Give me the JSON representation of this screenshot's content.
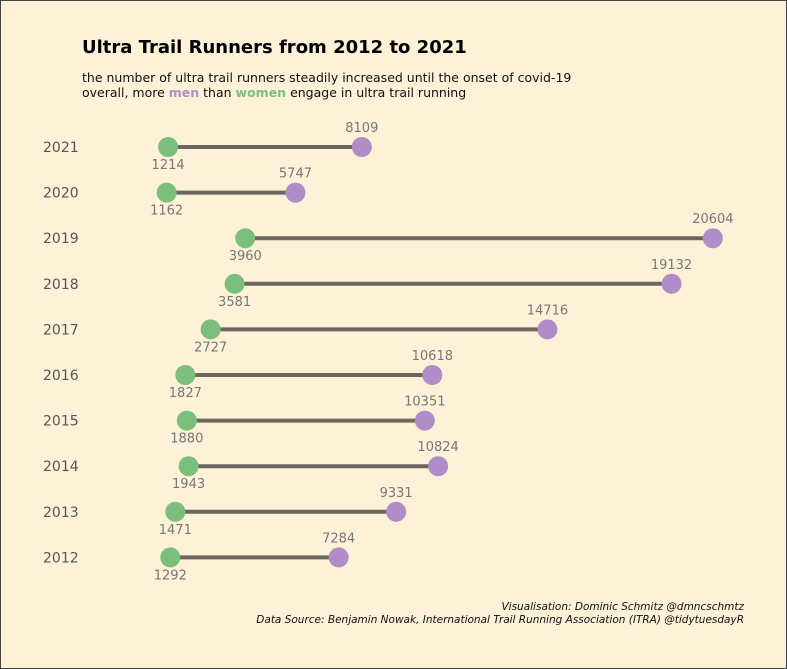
{
  "chart_data": {
    "type": "dumbbell",
    "title": "Ultra Trail Runners from 2012 to 2021",
    "subtitle_line1": "the number of ultra trail runners steadily increased until the onset of covid-19",
    "subtitle_line2": {
      "pre": "overall, more ",
      "men_word": "men",
      "mid": " than ",
      "women_word": "women",
      "post": " engage in ultra trail running"
    },
    "categories": [
      "2021",
      "2020",
      "2019",
      "2018",
      "2017",
      "2016",
      "2015",
      "2014",
      "2013",
      "2012"
    ],
    "series": [
      {
        "name": "women",
        "color": "#7cbf7c",
        "values": [
          1214,
          1162,
          3960,
          3581,
          2727,
          1827,
          1880,
          1943,
          1471,
          1292
        ]
      },
      {
        "name": "men",
        "color": "#b08cc8",
        "values": [
          8109,
          5747,
          20604,
          19132,
          14716,
          10618,
          10351,
          10824,
          9331,
          7284
        ]
      }
    ],
    "segment_color": "#6b665e",
    "caption_line1": "Visualisation: Dominic Schmitz @dmncschmtz",
    "caption_line2": "Data Source: Benjamin Nowak, International Trail Running Association (ITRA) @tidytuesdayR",
    "grid": false,
    "xlim": [
      0,
      21000
    ]
  }
}
